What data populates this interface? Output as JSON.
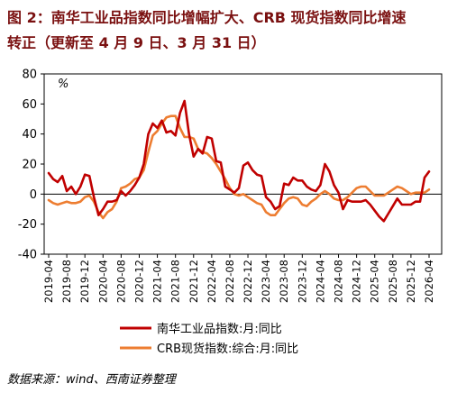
{
  "title": {
    "line1": "图 2：南华工业品指数同比增幅扩大、CRB 现货指数同比增速",
    "line2": "转正（更新至 4 月 9 日、3 月 31 日）"
  },
  "source": "数据来源：wind、西南证券整理",
  "colors": {
    "south_china": "#c00000",
    "crb": "#ed7d31"
  },
  "chart_data": {
    "type": "line",
    "y_unit_label": "%",
    "ylim": [
      -40,
      80
    ],
    "yticks": [
      "80",
      "60",
      "40",
      "20",
      "0",
      "-20",
      "-40"
    ],
    "x_start": "2019-04",
    "x_end": "2026-04",
    "xtick_labels": [
      "2019-04",
      "2019-08",
      "2019-12",
      "2020-04",
      "2020-08",
      "2020-12",
      "2021-04",
      "2021-08",
      "2021-12",
      "2022-04",
      "2022-08",
      "2022-12",
      "2023-04",
      "2023-08",
      "2023-12",
      "2024-04",
      "2024-08",
      "2024-12",
      "2025-04",
      "2025-08",
      "2025-12",
      "2026-04"
    ],
    "legend_position": "bottom",
    "series": [
      {
        "name": "南华工业品指数:月:同比",
        "values": [
          [
            "2019-04",
            14
          ],
          [
            "2019-05",
            10
          ],
          [
            "2019-06",
            8
          ],
          [
            "2019-07",
            12
          ],
          [
            "2019-08",
            2
          ],
          [
            "2019-09",
            5
          ],
          [
            "2019-10",
            0
          ],
          [
            "2019-11",
            5
          ],
          [
            "2019-12",
            13
          ],
          [
            "2020-01",
            12
          ],
          [
            "2020-02",
            -2
          ],
          [
            "2020-03",
            -14
          ],
          [
            "2020-04",
            -10
          ],
          [
            "2020-05",
            -5
          ],
          [
            "2020-06",
            -5
          ],
          [
            "2020-07",
            -4
          ],
          [
            "2020-08",
            2
          ],
          [
            "2020-09",
            -1
          ],
          [
            "2020-10",
            2
          ],
          [
            "2020-11",
            6
          ],
          [
            "2020-12",
            11
          ],
          [
            "2021-01",
            20
          ],
          [
            "2021-02",
            40
          ],
          [
            "2021-03",
            47
          ],
          [
            "2021-04",
            44
          ],
          [
            "2021-05",
            49
          ],
          [
            "2021-06",
            41
          ],
          [
            "2021-07",
            42
          ],
          [
            "2021-08",
            39
          ],
          [
            "2021-09",
            54
          ],
          [
            "2021-10",
            62
          ],
          [
            "2021-11",
            40
          ],
          [
            "2021-12",
            25
          ],
          [
            "2022-01",
            30
          ],
          [
            "2022-02",
            27
          ],
          [
            "2022-03",
            38
          ],
          [
            "2022-04",
            37
          ],
          [
            "2022-05",
            22
          ],
          [
            "2022-06",
            21
          ],
          [
            "2022-07",
            5
          ],
          [
            "2022-08",
            3
          ],
          [
            "2022-09",
            1
          ],
          [
            "2022-10",
            4
          ],
          [
            "2022-11",
            19
          ],
          [
            "2022-12",
            21
          ],
          [
            "2023-01",
            16
          ],
          [
            "2023-02",
            13
          ],
          [
            "2023-03",
            12
          ],
          [
            "2023-04",
            -2
          ],
          [
            "2023-05",
            -5
          ],
          [
            "2023-06",
            -10
          ],
          [
            "2023-07",
            -8
          ],
          [
            "2023-08",
            7
          ],
          [
            "2023-09",
            6
          ],
          [
            "2023-10",
            11
          ],
          [
            "2023-11",
            9
          ],
          [
            "2023-12",
            9
          ],
          [
            "2024-01",
            5
          ],
          [
            "2024-02",
            3
          ],
          [
            "2024-03",
            2
          ],
          [
            "2024-04",
            6
          ],
          [
            "2024-05",
            20
          ],
          [
            "2024-06",
            15
          ],
          [
            "2024-07",
            6
          ],
          [
            "2024-08",
            1
          ],
          [
            "2024-09",
            -10
          ],
          [
            "2024-10",
            -4
          ],
          [
            "2024-11",
            -5
          ],
          [
            "2024-12",
            -5
          ],
          [
            "2025-01",
            -5
          ],
          [
            "2025-02",
            -4
          ],
          [
            "2025-03",
            -7
          ],
          [
            "2025-04",
            -11
          ],
          [
            "2025-05",
            -15
          ],
          [
            "2025-06",
            -18
          ],
          [
            "2025-07",
            -13
          ],
          [
            "2025-08",
            -8
          ],
          [
            "2025-09",
            -3
          ],
          [
            "2025-10",
            -7
          ],
          [
            "2025-11",
            -7
          ],
          [
            "2025-12",
            -7
          ],
          [
            "2026-01",
            -5
          ],
          [
            "2026-02",
            -5
          ],
          [
            "2026-03",
            11
          ],
          [
            "2026-04",
            15
          ]
        ]
      },
      {
        "name": "CRB现货指数:综合:月:同比",
        "values": [
          [
            "2019-04",
            -4
          ],
          [
            "2019-05",
            -6
          ],
          [
            "2019-06",
            -7
          ],
          [
            "2019-07",
            -6
          ],
          [
            "2019-08",
            -5
          ],
          [
            "2019-09",
            -6
          ],
          [
            "2019-10",
            -6
          ],
          [
            "2019-11",
            -5
          ],
          [
            "2019-12",
            -2
          ],
          [
            "2020-01",
            -1
          ],
          [
            "2020-02",
            -5
          ],
          [
            "2020-03",
            -12
          ],
          [
            "2020-04",
            -16
          ],
          [
            "2020-05",
            -12
          ],
          [
            "2020-06",
            -10
          ],
          [
            "2020-07",
            -5
          ],
          [
            "2020-08",
            4
          ],
          [
            "2020-09",
            5
          ],
          [
            "2020-10",
            7
          ],
          [
            "2020-11",
            10
          ],
          [
            "2020-12",
            11
          ],
          [
            "2021-01",
            16
          ],
          [
            "2021-02",
            28
          ],
          [
            "2021-03",
            39
          ],
          [
            "2021-04",
            42
          ],
          [
            "2021-05",
            47
          ],
          [
            "2021-06",
            51
          ],
          [
            "2021-07",
            52
          ],
          [
            "2021-08",
            52
          ],
          [
            "2021-09",
            44
          ],
          [
            "2021-10",
            38
          ],
          [
            "2021-11",
            38
          ],
          [
            "2021-12",
            37
          ],
          [
            "2022-01",
            30
          ],
          [
            "2022-02",
            28
          ],
          [
            "2022-03",
            27
          ],
          [
            "2022-04",
            24
          ],
          [
            "2022-05",
            20
          ],
          [
            "2022-06",
            15
          ],
          [
            "2022-07",
            10
          ],
          [
            "2022-08",
            4
          ],
          [
            "2022-09",
            0
          ],
          [
            "2022-10",
            -1
          ],
          [
            "2022-11",
            0
          ],
          [
            "2022-12",
            -2
          ],
          [
            "2023-01",
            -4
          ],
          [
            "2023-02",
            -6
          ],
          [
            "2023-03",
            -7
          ],
          [
            "2023-04",
            -12
          ],
          [
            "2023-05",
            -14
          ],
          [
            "2023-06",
            -14
          ],
          [
            "2023-07",
            -10
          ],
          [
            "2023-08",
            -6
          ],
          [
            "2023-09",
            -3
          ],
          [
            "2023-10",
            -2
          ],
          [
            "2023-11",
            -3
          ],
          [
            "2023-12",
            -7
          ],
          [
            "2024-01",
            -8
          ],
          [
            "2024-02",
            -5
          ],
          [
            "2024-03",
            -3
          ],
          [
            "2024-04",
            0
          ],
          [
            "2024-05",
            2
          ],
          [
            "2024-06",
            0
          ],
          [
            "2024-07",
            -3
          ],
          [
            "2024-08",
            -4
          ],
          [
            "2024-09",
            -4
          ],
          [
            "2024-10",
            -2
          ],
          [
            "2024-11",
            1
          ],
          [
            "2024-12",
            4
          ],
          [
            "2025-01",
            5
          ],
          [
            "2025-02",
            5
          ],
          [
            "2025-03",
            2
          ],
          [
            "2025-04",
            -1
          ],
          [
            "2025-05",
            -1
          ],
          [
            "2025-06",
            -1
          ],
          [
            "2025-07",
            1
          ],
          [
            "2025-08",
            3
          ],
          [
            "2025-09",
            5
          ],
          [
            "2025-10",
            4
          ],
          [
            "2025-11",
            2
          ],
          [
            "2025-12",
            0
          ],
          [
            "2026-01",
            1
          ],
          [
            "2026-02",
            1
          ],
          [
            "2026-03",
            1
          ],
          [
            "2026-04",
            3
          ]
        ]
      }
    ]
  }
}
